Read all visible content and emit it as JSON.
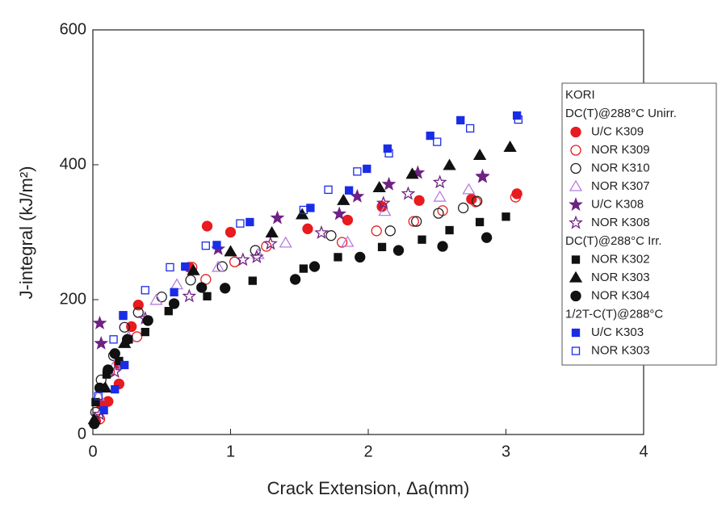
{
  "chart_data": {
    "type": "scatter",
    "xlabel": "Crack Extension, Δa(mm)",
    "ylabel": "J-integral (kJ/m²)",
    "xlim": [
      0,
      4
    ],
    "xticks": [
      0,
      1,
      2,
      3,
      4
    ],
    "ylim": [
      0,
      600
    ],
    "yticks": [
      0,
      200,
      400,
      600
    ],
    "legend_title": "KORI",
    "series_groups": [
      {
        "name": "DC(T)@288°C Unirr.",
        "series": [
          {
            "name": "U/C K309",
            "color": "#e81b1f",
            "marker": "circle",
            "filled": true,
            "x": [
              0.02,
              0.06,
              0.11,
              0.19,
              0.19,
              0.28,
              0.33,
              0.7,
              0.83,
              1.0,
              1.56,
              1.85,
              2.1,
              2.37,
              2.75,
              3.08
            ],
            "values": [
              20,
              45,
              49,
              75,
              105,
              160,
              192,
              248,
              309,
              300,
              305,
              318,
              338,
              347,
              349,
              357
            ]
          },
          {
            "name": "NOR K309",
            "color": "#e81b1f",
            "marker": "circle",
            "filled": false,
            "x": [
              0.05,
              0.12,
              0.32,
              0.72,
              0.82,
              1.03,
              1.26,
              1.81,
              2.06,
              2.33,
              2.54,
              2.78,
              3.07
            ],
            "values": [
              23,
              93,
              145,
              248,
              230,
              256,
              279,
              285,
              302,
              316,
              332,
              345,
              352
            ]
          },
          {
            "name": "NOR K310",
            "color": "#222222",
            "marker": "circle",
            "filled": false,
            "x": [
              0.02,
              0.06,
              0.15,
              0.23,
              0.33,
              0.5,
              0.71,
              0.94,
              1.18,
              1.73,
              2.16,
              2.35,
              2.51,
              2.69,
              2.79
            ],
            "values": [
              33,
              81,
              117,
              159,
              181,
              204,
              229,
              249,
              273,
              295,
              302,
              316,
              328,
              336,
              346
            ]
          },
          {
            "name": "NOR K307",
            "color": "#b77fe0",
            "marker": "triangle",
            "filled": false,
            "x": [
              0.04,
              0.16,
              0.26,
              0.46,
              0.61,
              0.91,
              1.2,
              1.4,
              1.85,
              2.12,
              2.52,
              2.73
            ],
            "values": [
              57,
              103,
              144,
              199,
              222,
              248,
              267,
              284,
              285,
              331,
              352,
              363
            ]
          },
          {
            "name": "U/C K308",
            "color": "#6e2283",
            "marker": "star",
            "filled": true,
            "x": [
              0.05,
              0.06,
              0.91,
              1.34,
              1.79,
              1.92,
              2.15,
              2.36,
              2.83
            ],
            "values": [
              165,
              135,
              275,
              321,
              327,
              353,
              371,
              388,
              383
            ]
          },
          {
            "name": "NOR K308",
            "color": "#6e2283",
            "marker": "star",
            "filled": false,
            "x": [
              0.05,
              0.16,
              0.38,
              0.7,
              1.09,
              1.19,
              1.29,
              1.66,
              2.11,
              2.29,
              2.52,
              2.83
            ],
            "values": [
              30,
              93,
              172,
              205,
              259,
              263,
              283,
              299,
              343,
              357,
              374,
              382
            ]
          }
        ]
      },
      {
        "name": "DC(T)@288°C Irr.",
        "series": [
          {
            "name": "NOR K302",
            "color": "#111111",
            "marker": "square",
            "filled": true,
            "x": [
              0.02,
              0.1,
              0.19,
              0.26,
              0.38,
              0.55,
              0.83,
              1.16,
              1.53,
              1.78,
              2.1,
              2.39,
              2.59,
              2.81,
              3.0
            ],
            "values": [
              48,
              89,
              109,
              141,
              152,
              183,
              205,
              228,
              246,
              263,
              278,
              289,
              303,
              315,
              323
            ]
          },
          {
            "name": "NOR K303",
            "color": "#111111",
            "marker": "triangle",
            "filled": true,
            "x": [
              0.01,
              0.09,
              0.23,
              0.73,
              1.0,
              1.3,
              1.52,
              1.82,
              2.08,
              2.32,
              2.59,
              2.81,
              3.03
            ],
            "values": [
              22,
              69,
              135,
              243,
              271,
              299,
              326,
              347,
              366,
              386,
              399,
              414,
              426
            ]
          },
          {
            "name": "NOR K304",
            "color": "#111111",
            "marker": "circle",
            "filled": true,
            "x": [
              0.01,
              0.05,
              0.11,
              0.16,
              0.25,
              0.4,
              0.59,
              0.79,
              0.96,
              1.47,
              1.61,
              1.94,
              2.22,
              2.54,
              2.86
            ],
            "values": [
              16,
              69,
              96,
              120,
              141,
              169,
              194,
              218,
              217,
              230,
              249,
              263,
              273,
              279,
              292
            ]
          }
        ]
      },
      {
        "name": "1/2T-C(T)@288°C",
        "series": [
          {
            "name": "U/C K303",
            "color": "#1a2de6",
            "marker": "square",
            "filled": true,
            "x": [
              0.08,
              0.16,
              0.23,
              0.22,
              0.59,
              0.67,
              0.9,
              1.14,
              1.58,
              1.86,
              1.99,
              2.14,
              2.45,
              2.67,
              3.08
            ],
            "values": [
              36,
              67,
              103,
              177,
              211,
              249,
              281,
              315,
              336,
              362,
              394,
              424,
              443,
              466,
              473
            ]
          },
          {
            "name": "NOR K303",
            "color": "#1a2de6",
            "marker": "square",
            "filled": false,
            "x": [
              0.04,
              0.15,
              0.22,
              0.38,
              0.56,
              0.82,
              1.07,
              1.53,
              1.71,
              1.92,
              2.15,
              2.5,
              2.74,
              3.09
            ],
            "values": [
              57,
              141,
              176,
              214,
              248,
              280,
              313,
              333,
              363,
              390,
              417,
              434,
              454,
              467
            ]
          }
        ]
      }
    ]
  }
}
